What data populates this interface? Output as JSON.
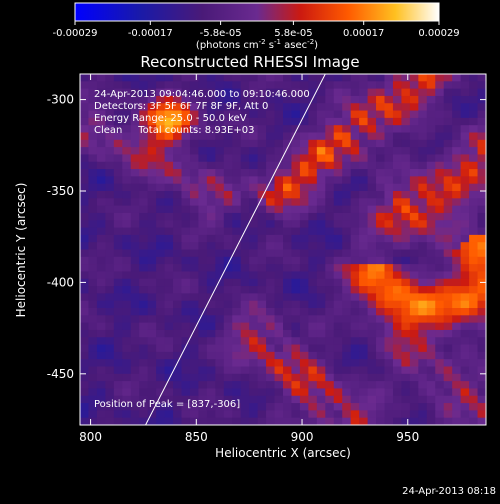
{
  "chart_data": {
    "type": "heatmap",
    "title": "Reconstructed RHESSI Image",
    "xlabel": "Heliocentric X (arcsec)",
    "ylabel": "Heliocentric Y (arcsec)",
    "xlim": [
      795,
      987
    ],
    "ylim": [
      -478,
      -286
    ],
    "x_ticks": [
      800,
      850,
      900,
      950
    ],
    "y_ticks": [
      -300,
      -350,
      -400,
      -450
    ],
    "colorbar": {
      "min": -0.00029,
      "max": 0.00029,
      "tick_values": [
        -0.00029,
        -0.00017,
        -5.8e-05,
        5.8e-05,
        0.00017,
        0.00029
      ],
      "tick_labels": [
        "-0.00029",
        "-0.00017",
        "-5.8e-05",
        "5.8e-05",
        "0.00017",
        "0.00029"
      ],
      "units_prefix": "(photons cm",
      "units_exp1": "-2",
      "units_mid": " s",
      "units_exp2": "-1",
      "units_mid2": " asec",
      "units_exp3": "-2",
      "units_suffix": ")"
    },
    "annotations": [
      "24-Apr-2013 09:04:46.000 to 09:10:46.000",
      "Detectors: 3F 5F 6F 7F 8F 9F, Att 0",
      "Energy Range: 25.0 - 50.0 keV",
      "Clean     Total counts: 8.93E+03"
    ],
    "peak_label": "Position of Peak = [837,-306]",
    "peak": [
      837,
      -306
    ],
    "limb_line": {
      "from": [
        826,
        -478
      ],
      "to": [
        911,
        -286
      ]
    },
    "intensity_features": [
      {
        "kind": "peak-blob",
        "center": [
          837,
          -312
        ],
        "radius": 14,
        "amplitude": 0.00029
      },
      {
        "kind": "ridge",
        "from": [
          890,
          -350
        ],
        "to": [
          960,
          -285
        ],
        "width": 9,
        "amplitude": 0.00023
      },
      {
        "kind": "ridge",
        "from": [
          950,
          -360
        ],
        "to": [
          987,
          -330
        ],
        "width": 10,
        "amplitude": 0.0002
      },
      {
        "kind": "arc",
        "center": [
          960,
          -390
        ],
        "radius": 25,
        "width": 10,
        "amplitude": 0.00025
      },
      {
        "kind": "ridge",
        "from": [
          878,
          -430
        ],
        "to": [
          925,
          -478
        ],
        "width": 10,
        "amplitude": 0.00018
      },
      {
        "kind": "ridge",
        "from": [
          950,
          -440
        ],
        "to": [
          987,
          -470
        ],
        "width": 8,
        "amplitude": 0.00014
      },
      {
        "kind": "ridge",
        "from": [
          800,
          -315
        ],
        "to": [
          860,
          -355
        ],
        "width": 8,
        "amplitude": 0.00013
      }
    ],
    "timestamp": "24-Apr-2013 08:18"
  }
}
